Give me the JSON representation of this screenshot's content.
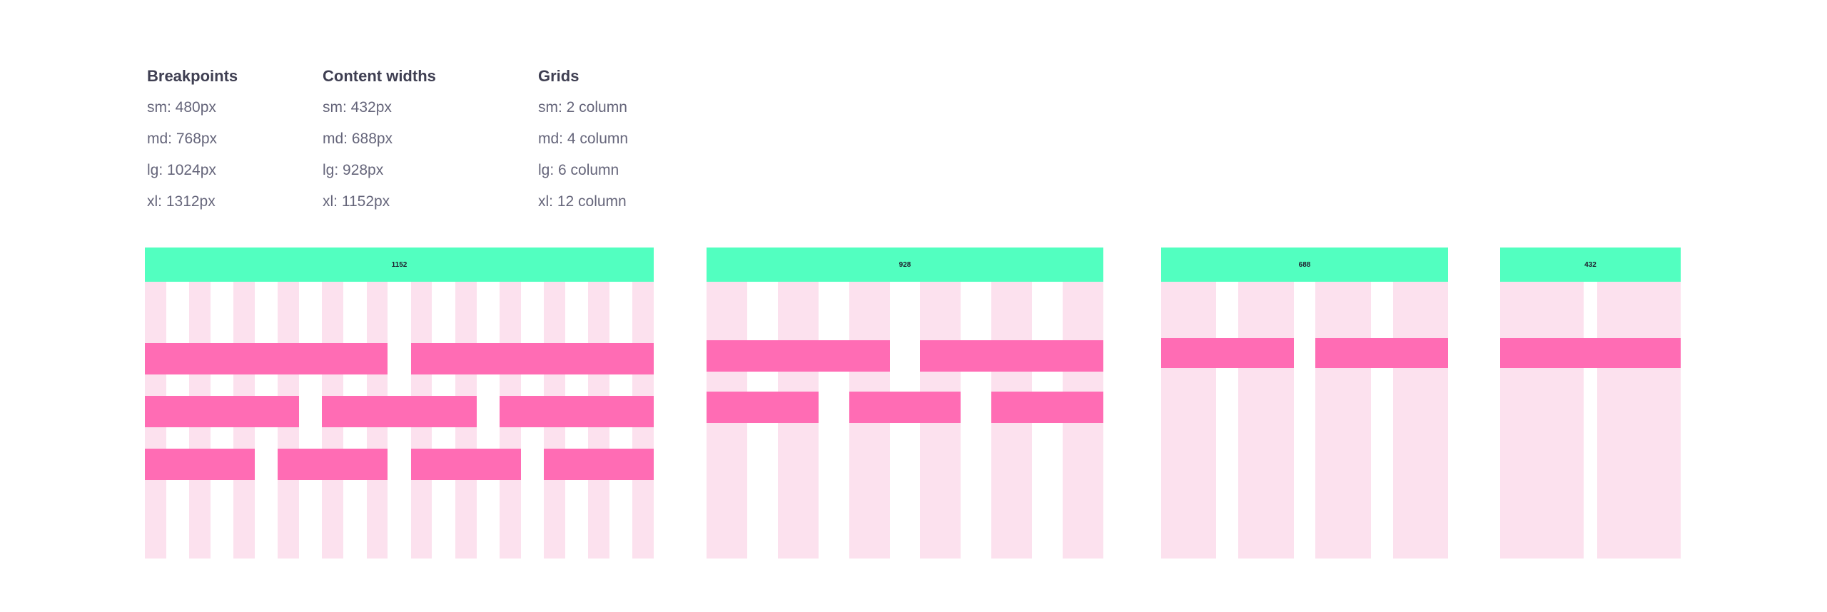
{
  "specs": [
    {
      "title": "Breakpoints",
      "items": [
        "sm: 480px",
        "md: 768px",
        "lg: 1024px",
        "xl: 1312px"
      ]
    },
    {
      "title": "Content widths",
      "items": [
        "sm: 432px",
        "md: 688px",
        "lg: 928px",
        "xl: 1152px"
      ]
    },
    {
      "title": "Grids",
      "items": [
        "sm: 2 column",
        "md: 4 column",
        "lg: 6 column",
        "xl: 12 column"
      ]
    }
  ],
  "grids": [
    {
      "width_label": "1152",
      "columns": 12,
      "rows": [
        {
          "span": 6,
          "count": 2
        },
        {
          "span": 4,
          "count": 3
        },
        {
          "span": 3,
          "count": 4
        }
      ]
    },
    {
      "width_label": "928",
      "columns": 6,
      "rows": [
        {
          "span": 3,
          "count": 2
        },
        {
          "span": 2,
          "count": 3
        }
      ]
    },
    {
      "width_label": "688",
      "columns": 4,
      "rows": [
        {
          "span": 2,
          "count": 2
        }
      ]
    },
    {
      "width_label": "432",
      "columns": 2,
      "rows": [
        {
          "span": 2,
          "count": 1
        }
      ]
    }
  ],
  "colors": {
    "header": "#52ffc0",
    "column": "#fce1ee",
    "bar": "#ff6cb4"
  }
}
